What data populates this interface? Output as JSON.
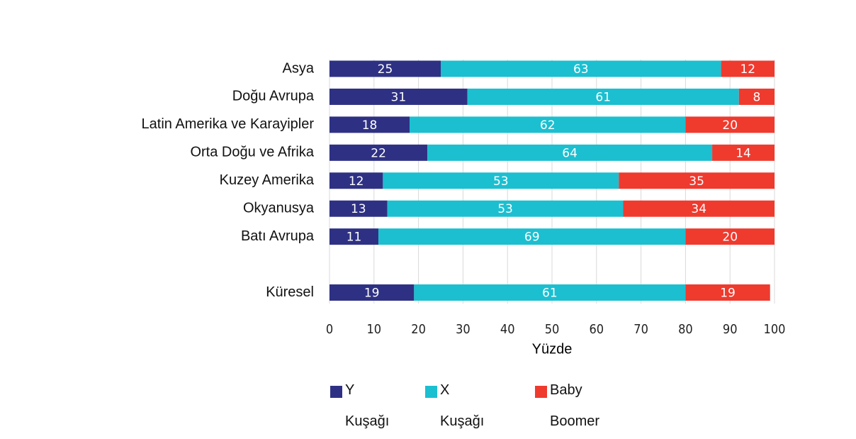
{
  "chart_data": {
    "type": "stacked_bar_horizontal",
    "categories": [
      "Asya",
      "Doğu Avrupa",
      "Latin Amerika ve Karayipler",
      "Orta Doğu ve Afrika",
      "Kuzey Amerika",
      "Okyanusya",
      "Batı Avrupa",
      null,
      "Küresel"
    ],
    "series": [
      {
        "name": "Y Kuşağı",
        "color": "#2e3183",
        "values": [
          25,
          31,
          18,
          22,
          12,
          13,
          11,
          null,
          19
        ]
      },
      {
        "name": "X Kuşağı",
        "color": "#1bbfd0",
        "values": [
          63,
          61,
          62,
          64,
          53,
          53,
          69,
          null,
          61
        ]
      },
      {
        "name": "Baby Boomer",
        "color": "#ef3a2e",
        "values": [
          12,
          8,
          20,
          14,
          35,
          34,
          20,
          null,
          19
        ]
      }
    ],
    "x_label": "Yüzde",
    "xlim": [
      0,
      100
    ],
    "xticks": [
      0,
      10,
      20,
      30,
      40,
      50,
      60,
      70,
      80,
      90,
      100
    ],
    "grid": true
  }
}
